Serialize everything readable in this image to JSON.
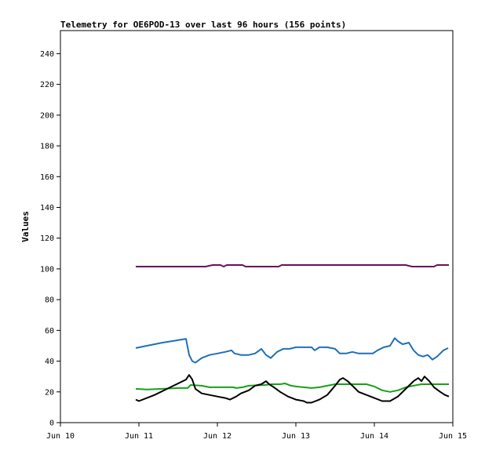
{
  "chart_data": {
    "type": "line",
    "title": "Telemetry for OE6POD-13 over last 96 hours (156 points)",
    "xlabel": "",
    "ylabel": "Values",
    "ylim": [
      0,
      255
    ],
    "yticks": [
      0,
      20,
      40,
      60,
      80,
      100,
      120,
      140,
      160,
      180,
      200,
      220,
      240
    ],
    "xlim": [
      0,
      5
    ],
    "xticks": [
      {
        "x": 0,
        "label": "Jun 10"
      },
      {
        "x": 1,
        "label": "Jun 11"
      },
      {
        "x": 2,
        "label": "Jun 12"
      },
      {
        "x": 3,
        "label": "Jun 13"
      },
      {
        "x": 4,
        "label": "Jun 14"
      },
      {
        "x": 5,
        "label": "Jun 15"
      }
    ],
    "grid": false,
    "legend": "none",
    "series": [
      {
        "color": "#6b0f5e",
        "points": [
          [
            0.96,
            101.5
          ],
          [
            1.4,
            101.5
          ],
          [
            1.85,
            101.5
          ],
          [
            1.94,
            102.5
          ],
          [
            2.04,
            102.5
          ],
          [
            2.08,
            101.5
          ],
          [
            2.12,
            102.5
          ],
          [
            2.32,
            102.5
          ],
          [
            2.36,
            101.5
          ],
          [
            2.78,
            101.5
          ],
          [
            2.82,
            102.5
          ],
          [
            3.4,
            102.5
          ],
          [
            3.9,
            102.5
          ],
          [
            4.4,
            102.5
          ],
          [
            4.48,
            101.5
          ],
          [
            4.76,
            101.5
          ],
          [
            4.8,
            102.5
          ],
          [
            4.95,
            102.5
          ]
        ]
      },
      {
        "color": "#1f6fb7",
        "points": [
          [
            0.96,
            48.5
          ],
          [
            1.1,
            50
          ],
          [
            1.3,
            52
          ],
          [
            1.48,
            53.5
          ],
          [
            1.6,
            54.5
          ],
          [
            1.64,
            44
          ],
          [
            1.68,
            40
          ],
          [
            1.72,
            39
          ],
          [
            1.8,
            42
          ],
          [
            1.9,
            44
          ],
          [
            2.0,
            45
          ],
          [
            2.1,
            46
          ],
          [
            2.18,
            47
          ],
          [
            2.22,
            45
          ],
          [
            2.3,
            44
          ],
          [
            2.4,
            44
          ],
          [
            2.48,
            45
          ],
          [
            2.56,
            48
          ],
          [
            2.62,
            44
          ],
          [
            2.68,
            42
          ],
          [
            2.76,
            46
          ],
          [
            2.84,
            48
          ],
          [
            2.92,
            48
          ],
          [
            3.0,
            49
          ],
          [
            3.1,
            49
          ],
          [
            3.2,
            49
          ],
          [
            3.24,
            47
          ],
          [
            3.3,
            49
          ],
          [
            3.4,
            49
          ],
          [
            3.5,
            48
          ],
          [
            3.56,
            45
          ],
          [
            3.64,
            45
          ],
          [
            3.72,
            46
          ],
          [
            3.8,
            45
          ],
          [
            3.9,
            45
          ],
          [
            3.98,
            45
          ],
          [
            4.04,
            47
          ],
          [
            4.12,
            49
          ],
          [
            4.2,
            50
          ],
          [
            4.26,
            55
          ],
          [
            4.3,
            53
          ],
          [
            4.36,
            51
          ],
          [
            4.44,
            52
          ],
          [
            4.5,
            47
          ],
          [
            4.56,
            44
          ],
          [
            4.62,
            43
          ],
          [
            4.68,
            44
          ],
          [
            4.74,
            41
          ],
          [
            4.8,
            43
          ],
          [
            4.88,
            47
          ],
          [
            4.94,
            48.5
          ]
        ]
      },
      {
        "color": "#18a018",
        "points": [
          [
            0.96,
            22
          ],
          [
            1.1,
            21.5
          ],
          [
            1.3,
            22
          ],
          [
            1.5,
            22.5
          ],
          [
            1.62,
            22.5
          ],
          [
            1.66,
            24.5
          ],
          [
            1.8,
            24
          ],
          [
            1.9,
            23
          ],
          [
            2.1,
            23
          ],
          [
            2.2,
            23
          ],
          [
            2.24,
            22.5
          ],
          [
            2.32,
            23
          ],
          [
            2.4,
            24
          ],
          [
            2.6,
            24.5
          ],
          [
            2.7,
            25
          ],
          [
            2.8,
            25
          ],
          [
            2.86,
            25.5
          ],
          [
            2.94,
            24
          ],
          [
            3.0,
            23.5
          ],
          [
            3.1,
            23
          ],
          [
            3.2,
            22.5
          ],
          [
            3.3,
            23
          ],
          [
            3.4,
            24
          ],
          [
            3.5,
            25
          ],
          [
            3.6,
            25
          ],
          [
            3.7,
            25
          ],
          [
            3.8,
            25
          ],
          [
            3.9,
            25
          ],
          [
            4.0,
            23.5
          ],
          [
            4.1,
            21
          ],
          [
            4.2,
            20
          ],
          [
            4.3,
            21
          ],
          [
            4.4,
            23
          ],
          [
            4.5,
            24
          ],
          [
            4.6,
            25
          ],
          [
            4.7,
            25
          ],
          [
            4.8,
            25
          ],
          [
            4.95,
            25
          ]
        ]
      },
      {
        "color": "#000000",
        "points": [
          [
            0.96,
            15
          ],
          [
            1.0,
            14
          ],
          [
            1.2,
            18
          ],
          [
            1.4,
            23
          ],
          [
            1.6,
            28
          ],
          [
            1.64,
            31
          ],
          [
            1.68,
            28
          ],
          [
            1.72,
            22
          ],
          [
            1.8,
            19
          ],
          [
            1.9,
            18
          ],
          [
            2.0,
            17
          ],
          [
            2.1,
            16
          ],
          [
            2.16,
            15
          ],
          [
            2.24,
            17
          ],
          [
            2.3,
            19
          ],
          [
            2.4,
            21
          ],
          [
            2.48,
            24
          ],
          [
            2.56,
            25
          ],
          [
            2.62,
            27
          ],
          [
            2.66,
            25
          ],
          [
            2.72,
            23
          ],
          [
            2.8,
            20
          ],
          [
            2.9,
            17
          ],
          [
            3.0,
            15
          ],
          [
            3.1,
            14
          ],
          [
            3.14,
            13
          ],
          [
            3.2,
            13
          ],
          [
            3.3,
            15
          ],
          [
            3.4,
            18
          ],
          [
            3.5,
            24
          ],
          [
            3.56,
            28
          ],
          [
            3.6,
            29
          ],
          [
            3.66,
            27
          ],
          [
            3.72,
            24
          ],
          [
            3.8,
            20
          ],
          [
            3.9,
            18
          ],
          [
            4.0,
            16
          ],
          [
            4.1,
            14
          ],
          [
            4.2,
            14
          ],
          [
            4.3,
            17
          ],
          [
            4.4,
            22
          ],
          [
            4.5,
            27
          ],
          [
            4.56,
            29
          ],
          [
            4.6,
            27
          ],
          [
            4.64,
            30
          ],
          [
            4.7,
            27
          ],
          [
            4.76,
            23
          ],
          [
            4.84,
            20
          ],
          [
            4.9,
            18
          ],
          [
            4.95,
            17
          ]
        ]
      }
    ]
  }
}
